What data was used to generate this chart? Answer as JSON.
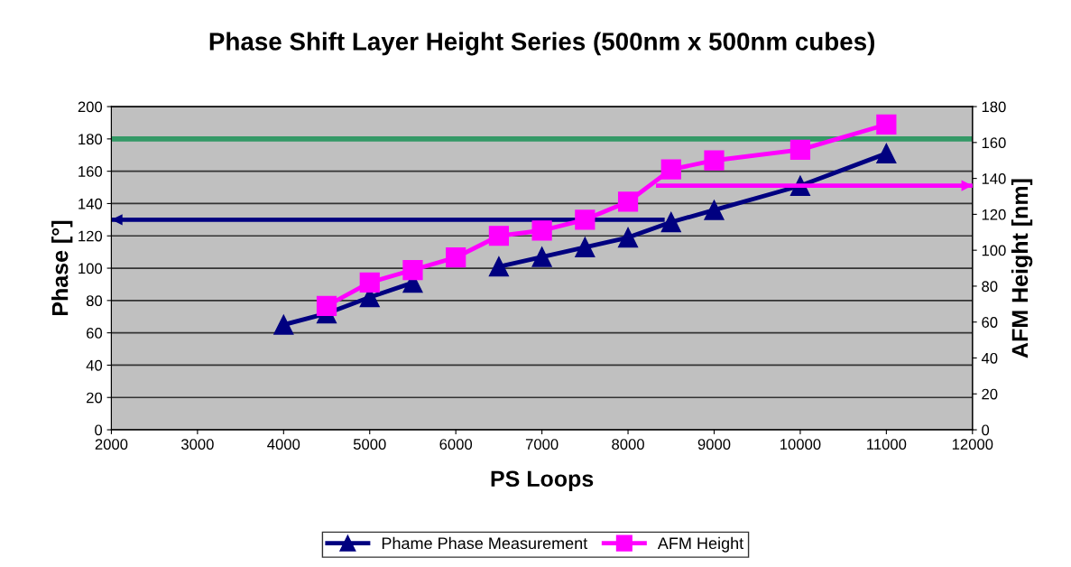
{
  "chart_data": {
    "type": "line",
    "title": "Phase Shift Layer Height Series (500nm x 500nm cubes)",
    "xlabel": "PS Loops",
    "ylabel": "Phase [°]",
    "y2label": "AFM Height [nm]",
    "x": [
      4000,
      4500,
      5000,
      5500,
      6000,
      6500,
      7000,
      7500,
      8000,
      8500,
      9000,
      10000,
      11000
    ],
    "series": [
      {
        "name": "Phame Phase Measurement",
        "color": "#000080",
        "marker": "triangle",
        "values": [
          65,
          72,
          82,
          91,
          null,
          101,
          107,
          113,
          119,
          128.5,
          136,
          151,
          171
        ]
      },
      {
        "name": "AFM Height",
        "color": "#ff00ff",
        "marker": "square",
        "axis": "y2",
        "values": [
          null,
          69,
          82,
          89,
          96,
          108,
          111,
          117,
          127,
          145,
          150,
          156,
          170
        ]
      },
      {
        "color": "#000080",
        "marker": "none",
        "x": [
          8400,
          2000
        ],
        "values": [
          130,
          130
        ]
      },
      {
        "color": "#ff00ff",
        "marker": "none",
        "axis": "y2",
        "x": [
          8350,
          12000
        ],
        "values": [
          136,
          136
        ]
      }
    ],
    "ref_lines": [
      {
        "axis": "y",
        "value": 180,
        "color": "#339966"
      }
    ],
    "xlim": [
      2000,
      12000
    ],
    "xticks": [
      2000,
      3000,
      4000,
      5000,
      6000,
      7000,
      8000,
      9000,
      10000,
      11000,
      12000
    ],
    "ylim": [
      0,
      200
    ],
    "yticks": [
      0,
      20,
      40,
      60,
      80,
      100,
      120,
      140,
      160,
      180,
      200
    ],
    "y2lim": [
      0,
      180
    ],
    "y2ticks": [
      0,
      20,
      40,
      60,
      80,
      100,
      120,
      140,
      160,
      180
    ],
    "grid": "y",
    "legend": "bottom"
  }
}
